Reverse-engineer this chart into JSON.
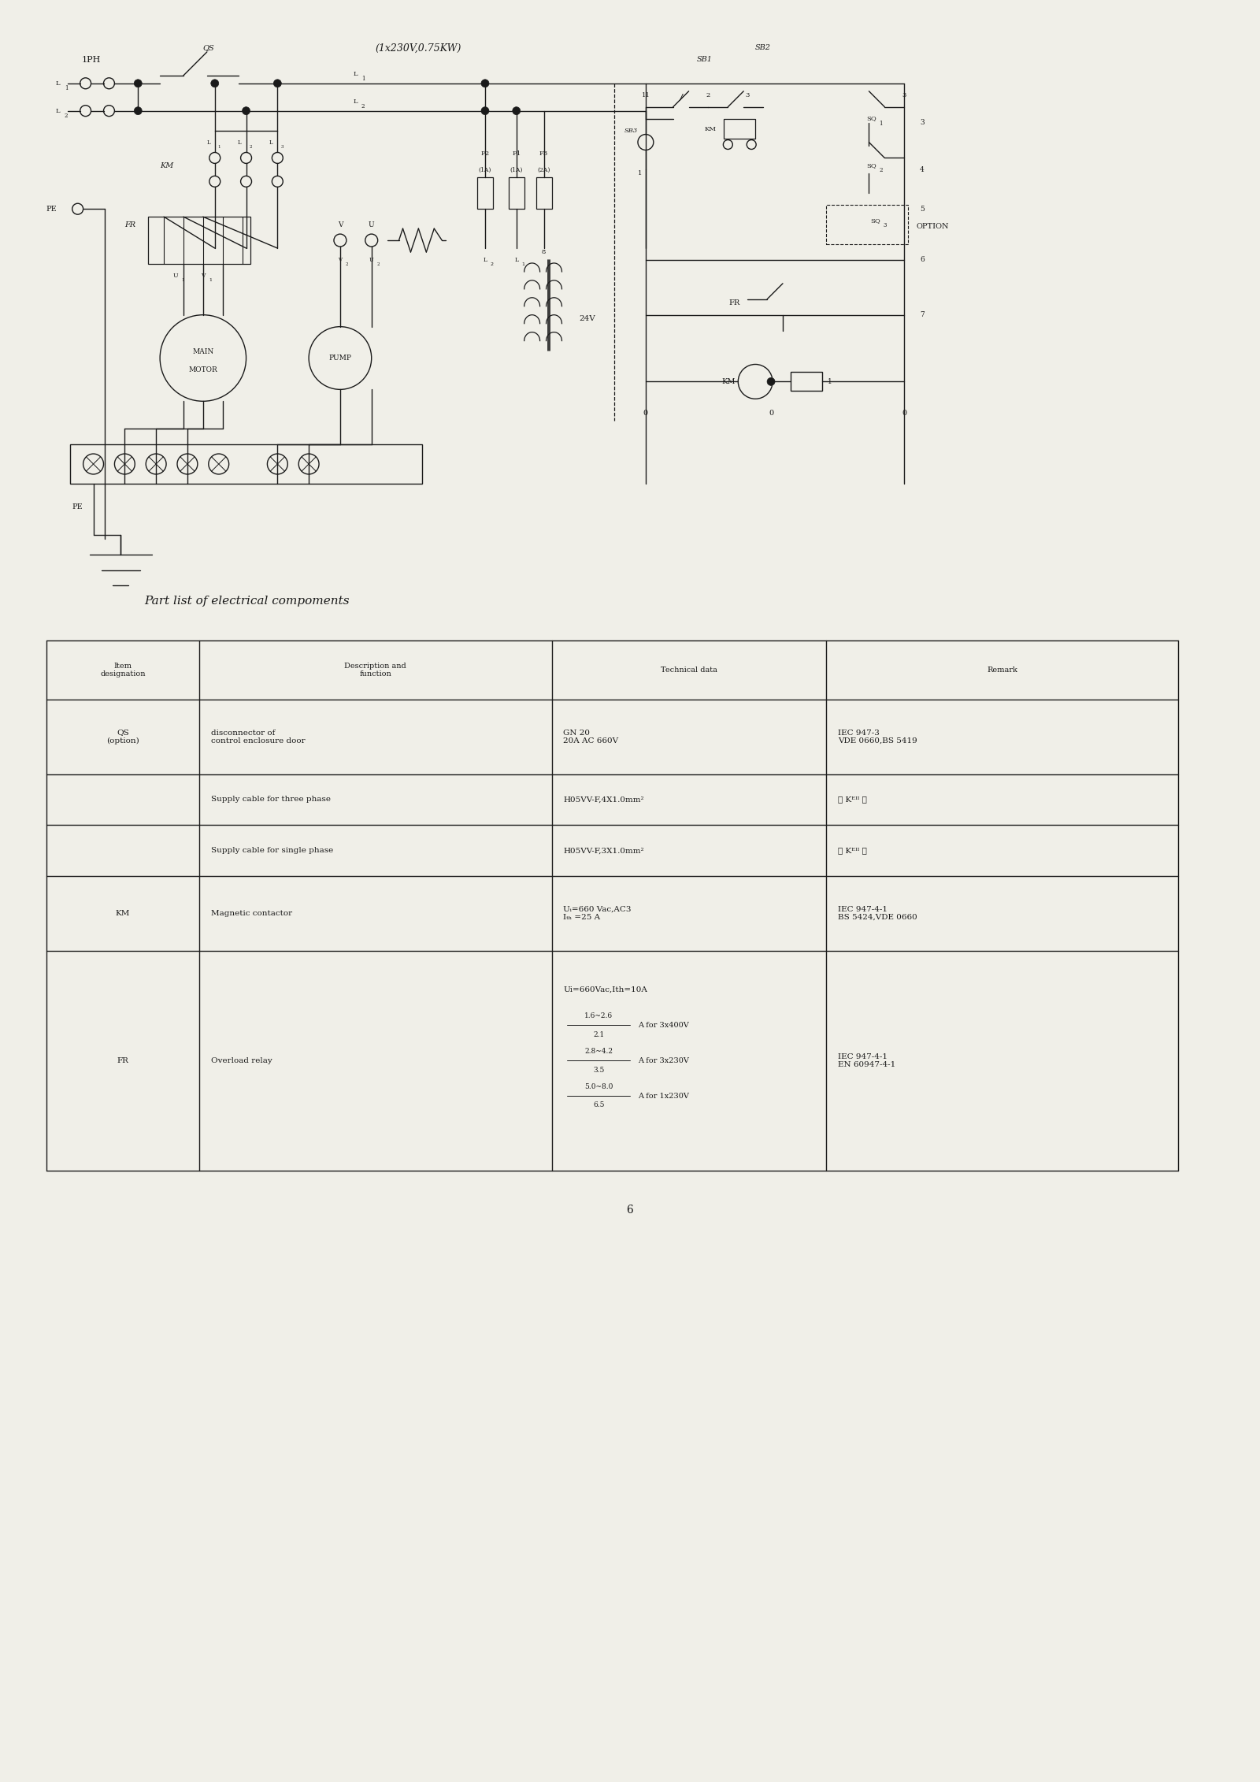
{
  "bg_color": "#f0efe8",
  "line_color": "#1a1a1a",
  "title": "(1x230V,0.75KW)",
  "page_number": "6",
  "table_title": "Part list of electrical compoments"
}
